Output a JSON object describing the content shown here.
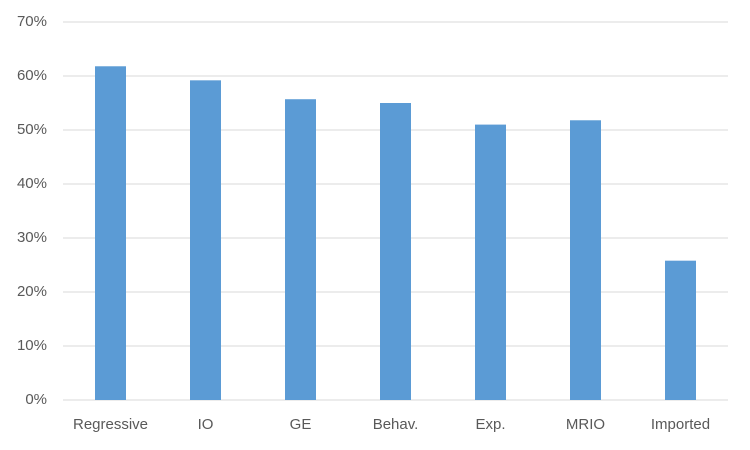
{
  "chart_data": {
    "type": "bar",
    "categories": [
      "Regressive",
      "IO",
      "GE",
      "Behav.",
      "Exp.",
      "MRIO",
      "Imported"
    ],
    "values": [
      61.8,
      59.2,
      55.7,
      55.0,
      51.0,
      51.8,
      25.8
    ],
    "color": "#5b9bd5",
    "ylim": [
      0,
      70
    ],
    "yticks": [
      {
        "value": 0,
        "label": "0%"
      },
      {
        "value": 10,
        "label": "10%"
      },
      {
        "value": 20,
        "label": "20%"
      },
      {
        "value": 30,
        "label": "30%"
      },
      {
        "value": 40,
        "label": "40%"
      },
      {
        "value": 50,
        "label": "50%"
      },
      {
        "value": 60,
        "label": "60%"
      },
      {
        "value": 70,
        "label": "70%"
      }
    ],
    "grid": true
  }
}
